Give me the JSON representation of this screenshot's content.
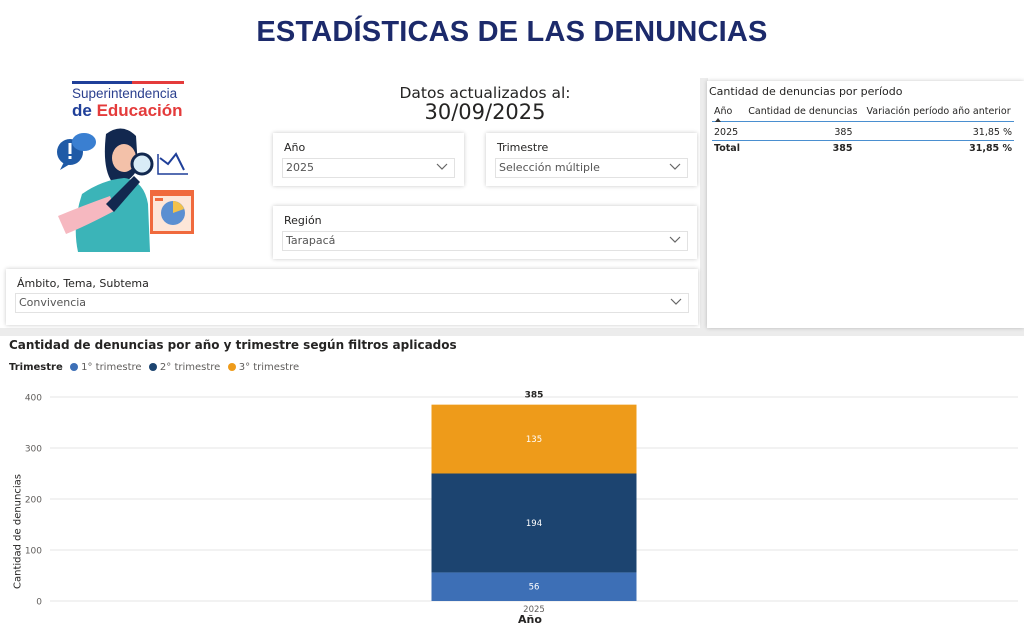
{
  "title": "ESTADÍSTICAS DE LAS DENUNCIAS",
  "logo": {
    "line1": "Superintendencia",
    "line2a": "de ",
    "line2b": "Educación",
    "flag_blue": "#1f3f99",
    "flag_red": "#e43b3b"
  },
  "update": {
    "label": "Datos actualizados al:",
    "date": "30/09/2025"
  },
  "filters": {
    "anio": {
      "label": "Año",
      "value": "2025"
    },
    "trimestre": {
      "label": "Trimestre",
      "value": "Selección múltiple"
    },
    "region": {
      "label": "Región",
      "value": "Tarapacá"
    },
    "ambito": {
      "label": "Ámbito, Tema, Subtema",
      "value": "Convivencia"
    }
  },
  "period_table": {
    "title": "Cantidad de denuncias por período",
    "headers": [
      "Año",
      "Cantidad de denuncias",
      "Variación período año anterior"
    ],
    "rows": [
      [
        "2025",
        "385",
        "31,85 %"
      ]
    ],
    "total": [
      "Total",
      "385",
      "31,85 %"
    ]
  },
  "chart_panel_title": "Cantidad de denuncias por año y trimestre según filtros aplicados",
  "chart_data": {
    "type": "bar",
    "stacked": true,
    "categories": [
      "2025"
    ],
    "series": [
      {
        "name": "1° trimestre",
        "values": [
          56
        ],
        "color": "#3d6fb6"
      },
      {
        "name": "2° trimestre",
        "values": [
          194
        ],
        "color": "#1c4470"
      },
      {
        "name": "3° trimestre",
        "values": [
          135
        ],
        "color": "#ee9b1a"
      }
    ],
    "totals": [
      "385"
    ],
    "legend_title": "Trimestre",
    "xlabel": "Año",
    "ylabel": "Cantidad de denuncias",
    "yticks": [
      "0",
      "100",
      "200",
      "300",
      "400"
    ],
    "ylim": [
      0,
      400
    ],
    "grid": true,
    "legend_position": "top-left"
  }
}
